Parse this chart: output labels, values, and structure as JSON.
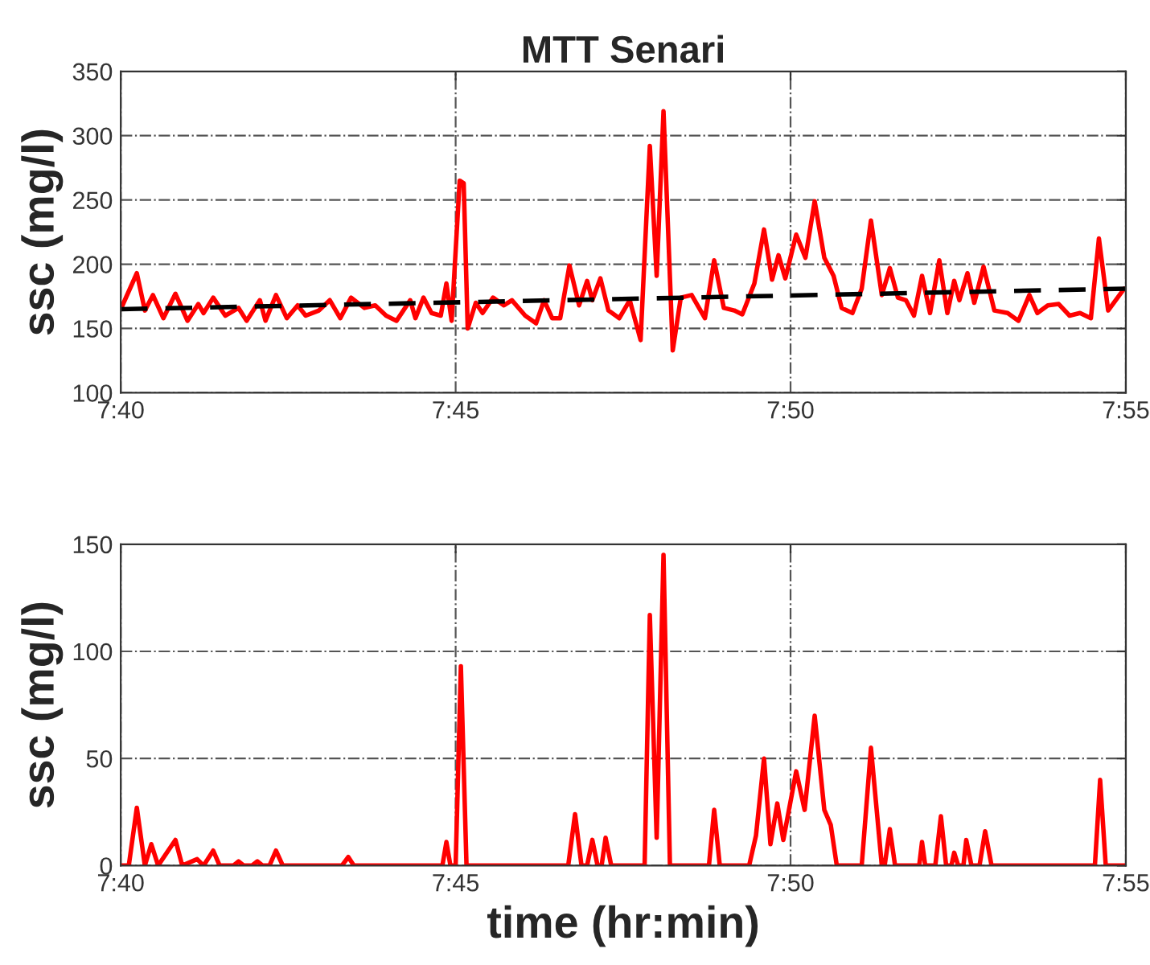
{
  "chart_data": [
    {
      "type": "line",
      "title": "MTT Senari",
      "ylabel": "ssc (mg/l)",
      "xlim": [
        7.6667,
        7.9167
      ],
      "ylim": [
        100,
        350
      ],
      "yticks": [
        100,
        150,
        200,
        250,
        300,
        350
      ],
      "xticks": [
        {
          "value": 7.6667,
          "label": "7:40"
        },
        {
          "value": 7.75,
          "label": "7:45"
        },
        {
          "value": 7.8333,
          "label": "7:50"
        },
        {
          "value": 7.9167,
          "label": "7:55"
        }
      ],
      "grid": true,
      "marker": "none",
      "series": [
        {
          "color": "#ff0000",
          "line_style": "solid",
          "x": [
            7.6667,
            7.6707,
            7.6727,
            7.6747,
            7.6773,
            7.6803,
            7.6833,
            7.686,
            7.6873,
            7.6897,
            7.6927,
            7.696,
            7.698,
            7.7013,
            7.7027,
            7.7053,
            7.708,
            7.7107,
            7.7127,
            7.716,
            7.7187,
            7.7213,
            7.724,
            7.7273,
            7.73,
            7.7327,
            7.7353,
            7.7387,
            7.74,
            7.742,
            7.744,
            7.7463,
            7.7477,
            7.749,
            7.751,
            7.752,
            7.753,
            7.755,
            7.7567,
            7.7593,
            7.762,
            7.764,
            7.7673,
            7.77,
            7.772,
            7.774,
            7.776,
            7.7783,
            7.7807,
            7.7827,
            7.784,
            7.786,
            7.788,
            7.7907,
            7.7933,
            7.796,
            7.7983,
            7.8,
            7.8017,
            7.804,
            7.806,
            7.8087,
            7.812,
            7.8143,
            7.8167,
            7.8193,
            7.8213,
            7.8243,
            7.8267,
            7.8287,
            7.8303,
            7.832,
            7.8347,
            7.837,
            7.8393,
            7.8417,
            7.844,
            7.846,
            7.8487,
            7.851,
            7.8533,
            7.856,
            7.858,
            7.86,
            7.862,
            7.864,
            7.866,
            7.868,
            7.8703,
            7.8723,
            7.874,
            7.8753,
            7.8773,
            7.879,
            7.8813,
            7.884,
            7.8873,
            7.89,
            7.8927,
            7.8947,
            7.8973,
            7.9,
            7.9027,
            7.9053,
            7.908,
            7.91,
            7.9123,
            7.9163
          ],
          "values": [
            165,
            193,
            164,
            176,
            158,
            177,
            156,
            169,
            162,
            174,
            160,
            166,
            156,
            172,
            156,
            176,
            158,
            168,
            160,
            164,
            172,
            158,
            174,
            166,
            168,
            160,
            156,
            172,
            158,
            174,
            162,
            160,
            185,
            156,
            265,
            263,
            150,
            170,
            162,
            174,
            168,
            172,
            160,
            154,
            172,
            158,
            158,
            199,
            168,
            187,
            172,
            189,
            164,
            158,
            172,
            141,
            292,
            191,
            319,
            133,
            174,
            176,
            158,
            203,
            166,
            164,
            161,
            185,
            227,
            188,
            207,
            189,
            223,
            205,
            249,
            205,
            191,
            166,
            162,
            181,
            234,
            176,
            197,
            174,
            172,
            160,
            191,
            162,
            203,
            162,
            187,
            172,
            193,
            170,
            198,
            164,
            162,
            156,
            176,
            162,
            168,
            169,
            160,
            162,
            158,
            220,
            164,
            181
          ]
        },
        {
          "type": "line",
          "color": "#000000",
          "line_style": "dashed",
          "x": [
            7.6667,
            7.9167
          ],
          "values": [
            165,
            181
          ]
        }
      ]
    },
    {
      "type": "line",
      "ylabel": "ssc (mg/l)",
      "xlabel": "time (hr:min)",
      "xlim": [
        7.6667,
        7.9167
      ],
      "ylim": [
        0,
        150
      ],
      "yticks": [
        0,
        50,
        100,
        150
      ],
      "xticks": [
        {
          "value": 7.6667,
          "label": "7:40"
        },
        {
          "value": 7.75,
          "label": "7:45"
        },
        {
          "value": 7.8333,
          "label": "7:50"
        },
        {
          "value": 7.9167,
          "label": "7:55"
        }
      ],
      "grid": true,
      "marker": "none",
      "series": [
        {
          "color": "#ff0000",
          "line_style": "solid",
          "x": [
            7.6667,
            7.6687,
            7.6707,
            7.6727,
            7.6743,
            7.676,
            7.6803,
            7.682,
            7.6857,
            7.6873,
            7.6897,
            7.6913,
            7.6947,
            7.696,
            7.6973,
            7.6993,
            7.7007,
            7.702,
            7.7037,
            7.7053,
            7.707,
            7.7217,
            7.7233,
            7.7247,
            7.7467,
            7.7477,
            7.7487,
            7.75,
            7.7513,
            7.7527,
            7.778,
            7.7797,
            7.7813,
            7.7827,
            7.784,
            7.7853,
            7.7863,
            7.7873,
            7.7887,
            7.797,
            7.7983,
            7.8,
            7.8017,
            7.8033,
            7.813,
            7.8143,
            7.8157,
            7.823,
            7.8247,
            7.8267,
            7.8283,
            7.83,
            7.8315,
            7.8347,
            7.8368,
            7.8393,
            7.8417,
            7.8433,
            7.8448,
            7.851,
            7.8533,
            7.856,
            7.8567,
            7.858,
            7.8593,
            7.8653,
            7.866,
            7.8668,
            7.8693,
            7.8707,
            7.872,
            7.8733,
            7.874,
            7.875,
            7.8763,
            7.877,
            7.8783,
            7.8803,
            7.8817,
            7.8833,
            7.909,
            7.9103,
            7.9117,
            7.9167
          ],
          "values": [
            0,
            0,
            27,
            0,
            10,
            0,
            12,
            0,
            3,
            0,
            7,
            0,
            0,
            2,
            0,
            0,
            2,
            0,
            0,
            7,
            0,
            0,
            4,
            0,
            0,
            11,
            0,
            0,
            93,
            0,
            0,
            24,
            0,
            0,
            12,
            0,
            0,
            13,
            0,
            0,
            117,
            13,
            145,
            0,
            0,
            26,
            0,
            0,
            14,
            50,
            10,
            29,
            12,
            44,
            26,
            70,
            26,
            19,
            0,
            0,
            55,
            0,
            0,
            17,
            0,
            0,
            11,
            0,
            0,
            23,
            0,
            0,
            6,
            0,
            0,
            12,
            0,
            0,
            16,
            0,
            0,
            40,
            0,
            0
          ]
        }
      ]
    }
  ]
}
